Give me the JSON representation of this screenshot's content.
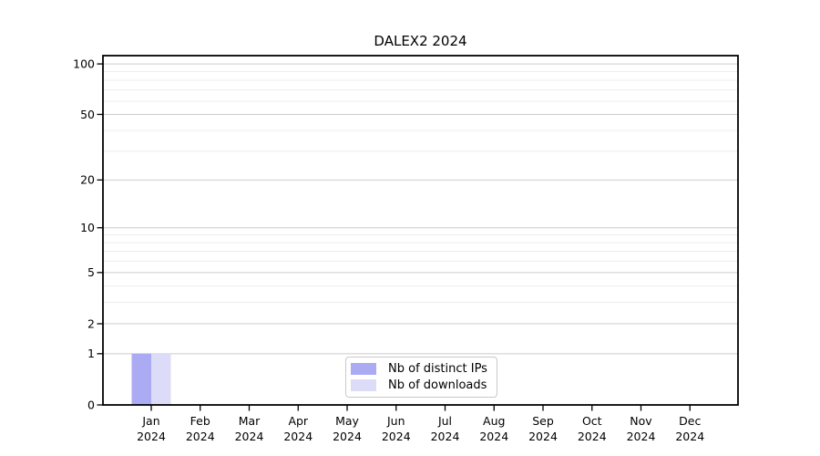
{
  "chart_data": {
    "type": "bar",
    "title": "DALEX2 2024",
    "categories": [
      "Jan",
      "Feb",
      "Mar",
      "Apr",
      "May",
      "Jun",
      "Jul",
      "Aug",
      "Sep",
      "Oct",
      "Nov",
      "Dec"
    ],
    "category_year": "2024",
    "series": [
      {
        "name": "Nb of distinct IPs",
        "color": "#ababf3",
        "values": [
          1,
          0,
          0,
          0,
          0,
          0,
          0,
          0,
          0,
          0,
          0,
          0
        ]
      },
      {
        "name": "Nb of downloads",
        "color": "#dcdcf8",
        "values": [
          1,
          0,
          0,
          0,
          0,
          0,
          0,
          0,
          0,
          0,
          0,
          0
        ]
      }
    ],
    "xlabel": "",
    "ylabel": "",
    "yscale": "log1p",
    "ylim": [
      0,
      112
    ],
    "y_major_ticks": [
      0,
      1,
      2,
      5,
      10,
      20,
      50,
      100
    ],
    "y_minor_gridlines": [
      3,
      4,
      6,
      7,
      8,
      9,
      30,
      40,
      60,
      70,
      80,
      90
    ],
    "grid": "horizontal",
    "legend_position": "bottom-center",
    "colors": {
      "axis": "#000000",
      "tick_label": "#000000",
      "major_grid": "#cccccc",
      "minor_grid": "#ededed",
      "legend_border": "#c9c9c9",
      "background": "#ffffff"
    }
  }
}
